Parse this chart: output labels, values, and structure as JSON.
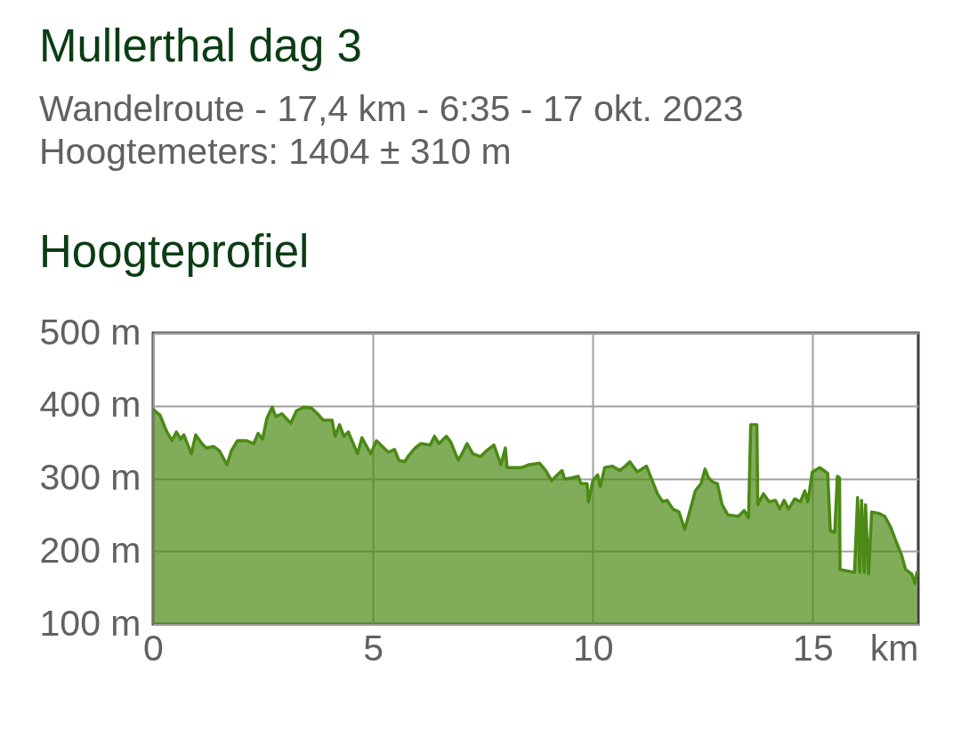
{
  "chart_data": {
    "type": "area",
    "title": "Mullerthal dag 3",
    "subtitle": "Wandelroute - 17,4 km - 6:35 - 17 okt. 2023\nHoogtemeters: 1404 ± 310 m",
    "annotations": [
      "Hoogteprofiel"
    ],
    "xlabel": "km",
    "x": [
      0.0,
      0.16,
      0.3,
      0.43,
      0.53,
      0.63,
      0.7,
      0.87,
      0.97,
      1.11,
      1.21,
      1.38,
      1.51,
      1.68,
      1.78,
      1.92,
      2.12,
      2.29,
      2.39,
      2.49,
      2.59,
      2.71,
      2.79,
      2.93,
      3.13,
      3.26,
      3.43,
      3.6,
      3.77,
      3.87,
      4.07,
      4.14,
      4.24,
      4.34,
      4.44,
      4.65,
      4.75,
      4.95,
      5.08,
      5.25,
      5.35,
      5.49,
      5.59,
      5.72,
      5.82,
      5.96,
      6.09,
      6.3,
      6.4,
      6.5,
      6.67,
      6.77,
      6.94,
      7.04,
      7.14,
      7.27,
      7.44,
      7.58,
      7.75,
      7.91,
      8.01,
      8.05,
      8.39,
      8.55,
      8.79,
      8.93,
      9.06,
      9.16,
      9.3,
      9.36,
      9.53,
      9.67,
      9.73,
      9.87,
      9.9,
      10.0,
      10.11,
      10.17,
      10.27,
      10.44,
      10.61,
      10.74,
      10.84,
      11.01,
      11.22,
      11.35,
      11.47,
      11.59,
      11.69,
      11.82,
      11.96,
      12.09,
      12.19,
      12.33,
      12.46,
      12.55,
      12.63,
      12.73,
      12.83,
      12.94,
      13.07,
      13.31,
      13.44,
      13.54,
      13.59,
      13.73,
      13.75,
      13.88,
      14.01,
      14.15,
      14.25,
      14.35,
      14.45,
      14.59,
      14.72,
      14.82,
      14.89,
      14.99,
      15.16,
      15.34,
      15.4,
      15.5,
      15.56,
      15.61,
      15.62,
      15.95,
      16.02,
      16.07,
      16.11,
      16.17,
      16.2,
      16.27,
      16.34,
      16.51,
      16.64,
      16.78,
      16.91,
      17.02,
      17.11,
      17.25,
      17.32,
      17.37
    ],
    "values": [
      395,
      387,
      366,
      352,
      364,
      354,
      360,
      334,
      360,
      348,
      342,
      344,
      338,
      319,
      338,
      352,
      352,
      348,
      362,
      354,
      383,
      398,
      385,
      389,
      376,
      393,
      398,
      397,
      387,
      380,
      380,
      358,
      374,
      358,
      364,
      334,
      356,
      334,
      352,
      342,
      336,
      340,
      325,
      323,
      332,
      342,
      348,
      346,
      358,
      348,
      358,
      350,
      325,
      336,
      348,
      334,
      330,
      338,
      346,
      319,
      342,
      315,
      315,
      319,
      321,
      311,
      297,
      303,
      311,
      299,
      301,
      303,
      293,
      293,
      268,
      297,
      305,
      289,
      315,
      317,
      311,
      317,
      323,
      309,
      317,
      297,
      279,
      268,
      270,
      258,
      254,
      230,
      252,
      283,
      293,
      313,
      301,
      295,
      293,
      264,
      250,
      248,
      256,
      246,
      374,
      374,
      264,
      279,
      268,
      270,
      258,
      270,
      258,
      272,
      268,
      283,
      268,
      309,
      315,
      307,
      228,
      226,
      303,
      301,
      175,
      171,
      274,
      171,
      270,
      171,
      264,
      169,
      254,
      252,
      248,
      232,
      211,
      195,
      175,
      169,
      156,
      171
    ],
    "color": "#4b8a14",
    "xlim": [
      0,
      17.4
    ],
    "ylim": [
      100,
      500
    ],
    "xticks": [
      0,
      5,
      10,
      15
    ],
    "yticks": [
      {
        "value": 100,
        "label": "100 m"
      },
      {
        "value": 200,
        "label": "200 m"
      },
      {
        "value": 300,
        "label": "300 m"
      },
      {
        "value": 400,
        "label": "400 m"
      },
      {
        "value": 500,
        "label": "500 m"
      }
    ],
    "grid": true
  }
}
